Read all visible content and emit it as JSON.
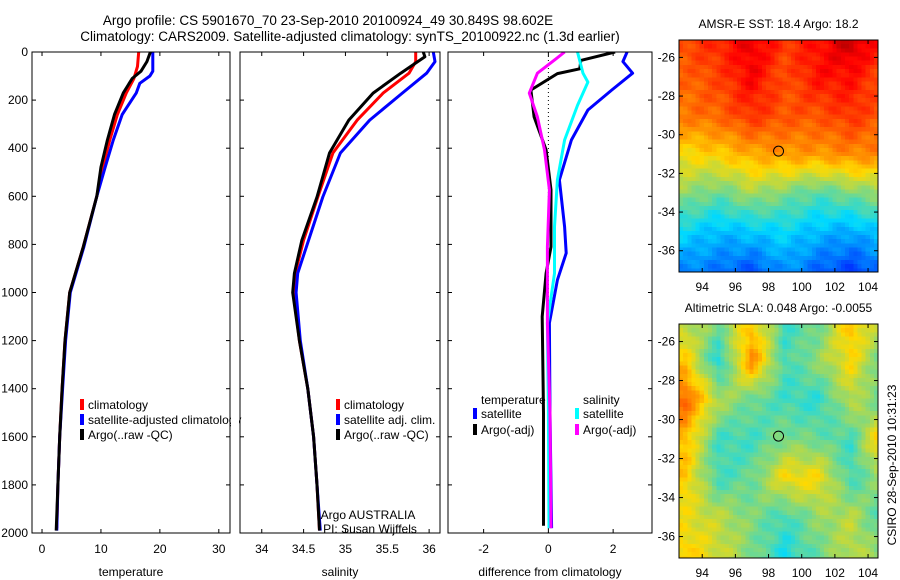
{
  "title": {
    "line1": "Argo profile: CS 5901670_70 23-Sep-2010 20100924_49 30.849S 98.602E",
    "line2": "Climatology: CARS2009. Satellite-adjusted climatology: synTS_20100922.nc (1.3d earlier)"
  },
  "footer": "CSIRO 28-Sep-2010 10:31:23",
  "colors": {
    "climatology": "#ff0000",
    "satellite": "#0000ff",
    "argo": "#000000",
    "sal_satellite": "#00ffff",
    "sal_argo": "#ff00ff"
  },
  "chart_data": [
    {
      "type": "line",
      "xlabel": "temperature",
      "ylabel": "",
      "xlim": [
        -1.7,
        31.9
      ],
      "ylim": [
        0,
        2000
      ],
      "y_reversed": true,
      "xticks": [
        "0",
        "10",
        "20",
        "30"
      ],
      "yticks": [
        "0",
        "200",
        "400",
        "600",
        "800",
        "1000",
        "1200",
        "1400",
        "1600",
        "1800",
        "2000"
      ],
      "legend": [
        "climatology",
        "satellite-adjusted climatology",
        "Argo(..raw -QC)"
      ],
      "series": [
        {
          "name": "climatology",
          "color": "#ff0000",
          "points": [
            [
              16.4,
              0
            ],
            [
              16.2,
              60
            ],
            [
              15.6,
              110
            ],
            [
              14.3,
              170
            ],
            [
              12.8,
              260
            ],
            [
              11.5,
              366
            ],
            [
              10.3,
              480
            ],
            [
              9.3,
              600
            ],
            [
              7.0,
              810
            ],
            [
              4.7,
              1000
            ],
            [
              3.9,
              1200
            ],
            [
              3.4,
              1400
            ],
            [
              3.0,
              1600
            ],
            [
              2.7,
              1800
            ],
            [
              2.5,
              1980
            ]
          ]
        },
        {
          "name": "satellite-adjusted climatology",
          "color": "#0000ff",
          "points": [
            [
              18.8,
              0
            ],
            [
              18.8,
              80
            ],
            [
              18.3,
              100
            ],
            [
              16.6,
              130
            ],
            [
              16.0,
              170
            ],
            [
              13.6,
              260
            ],
            [
              12.1,
              366
            ],
            [
              10.7,
              480
            ],
            [
              9.3,
              600
            ],
            [
              7.1,
              810
            ],
            [
              4.8,
              1000
            ],
            [
              4.0,
              1200
            ],
            [
              3.5,
              1400
            ],
            [
              3.0,
              1600
            ],
            [
              2.7,
              1800
            ],
            [
              2.5,
              1990
            ]
          ]
        },
        {
          "name": "Argo(..raw -QC)",
          "color": "#000000",
          "points": [
            [
              18.4,
              0
            ],
            [
              17.8,
              40
            ],
            [
              16.8,
              80
            ],
            [
              15.3,
              110
            ],
            [
              13.8,
              170
            ],
            [
              12.3,
              260
            ],
            [
              11.1,
              366
            ],
            [
              10.0,
              480
            ],
            [
              9.3,
              600
            ],
            [
              7.0,
              810
            ],
            [
              4.7,
              1000
            ],
            [
              3.9,
              1200
            ],
            [
              3.4,
              1400
            ],
            [
              3.0,
              1600
            ],
            [
              2.7,
              1800
            ],
            [
              2.4,
              1990
            ]
          ]
        }
      ]
    },
    {
      "type": "line",
      "xlabel": "salinity",
      "xlim": [
        33.74,
        36.13
      ],
      "ylim": [
        0,
        2000
      ],
      "y_reversed": true,
      "xticks": [
        "34",
        "34.5",
        "35",
        "35.5",
        "36"
      ],
      "legend": [
        "climatology",
        "satellite adj. clim.",
        "Argo(..raw -QC)"
      ],
      "annotation": [
        "Argo AUSTRALIA",
        "PI: Susan Wijffels"
      ],
      "series": [
        {
          "name": "climatology",
          "color": "#ff0000",
          "points": [
            [
              35.84,
              0
            ],
            [
              35.84,
              40
            ],
            [
              35.76,
              88
            ],
            [
              35.45,
              171
            ],
            [
              35.14,
              283
            ],
            [
              34.85,
              420
            ],
            [
              34.67,
              603
            ],
            [
              34.5,
              782
            ],
            [
              34.4,
              920
            ],
            [
              34.38,
              1000
            ],
            [
              34.45,
              1200
            ],
            [
              34.55,
              1400
            ],
            [
              34.62,
              1600
            ],
            [
              34.66,
              1800
            ],
            [
              34.69,
              1990
            ]
          ]
        },
        {
          "name": "satellite adj. clim.",
          "color": "#0000ff",
          "points": [
            [
              36.05,
              0
            ],
            [
              36.07,
              40
            ],
            [
              35.97,
              88
            ],
            [
              35.68,
              171
            ],
            [
              35.29,
              283
            ],
            [
              34.94,
              420
            ],
            [
              34.73,
              603
            ],
            [
              34.56,
              782
            ],
            [
              34.43,
              920
            ],
            [
              34.41,
              1000
            ],
            [
              34.46,
              1200
            ],
            [
              34.55,
              1400
            ],
            [
              34.62,
              1600
            ],
            [
              34.66,
              1800
            ],
            [
              34.7,
              1990
            ]
          ]
        },
        {
          "name": "Argo(..raw -QC)",
          "color": "#000000",
          "points": [
            [
              35.93,
              0
            ],
            [
              35.95,
              20
            ],
            [
              35.66,
              88
            ],
            [
              35.33,
              171
            ],
            [
              35.04,
              283
            ],
            [
              34.81,
              420
            ],
            [
              34.66,
              603
            ],
            [
              34.48,
              782
            ],
            [
              34.39,
              920
            ],
            [
              34.37,
              1000
            ],
            [
              34.45,
              1200
            ],
            [
              34.55,
              1400
            ],
            [
              34.62,
              1600
            ],
            [
              34.66,
              1800
            ],
            [
              34.69,
              1990
            ]
          ]
        }
      ]
    },
    {
      "type": "line",
      "xlabel": "difference from climatology",
      "xlim": [
        -3.1,
        3.2
      ],
      "ylim": [
        0,
        2000
      ],
      "y_reversed": true,
      "xticks": [
        "-2",
        "0",
        "2"
      ],
      "zero_line": 0,
      "legend": {
        "temperature": [
          "temperature",
          "satellite",
          "Argo(-adj)"
        ],
        "salinity": [
          "salinity",
          "satellite",
          "Argo(-adj)"
        ]
      },
      "series": [
        {
          "name": "temperature satellite",
          "color": "#0000ff",
          "points": [
            [
              2.43,
              0
            ],
            [
              2.3,
              40
            ],
            [
              2.6,
              88
            ],
            [
              1.96,
              158
            ],
            [
              1.22,
              241
            ],
            [
              0.71,
              366
            ],
            [
              0.34,
              532
            ],
            [
              0.5,
              727
            ],
            [
              0.55,
              836
            ],
            [
              0.28,
              948
            ],
            [
              0.03,
              1127
            ],
            [
              0.05,
              1500
            ],
            [
              0.1,
              1980
            ]
          ]
        },
        {
          "name": "temperature Argo(-adj)",
          "color": "#000000",
          "points": [
            [
              2.06,
              0
            ],
            [
              1.0,
              35
            ],
            [
              0.97,
              70
            ],
            [
              0.28,
              90
            ],
            [
              -0.54,
              158
            ],
            [
              -0.44,
              270
            ],
            [
              -0.07,
              407
            ],
            [
              0.08,
              573
            ],
            [
              0.08,
              810
            ],
            [
              -0.07,
              920
            ],
            [
              -0.19,
              1100
            ],
            [
              -0.15,
              1500
            ],
            [
              -0.15,
              1970
            ]
          ]
        },
        {
          "name": "salinity satellite",
          "color": "#00ffff",
          "points": [
            [
              0.9,
              0
            ],
            [
              1.07,
              88
            ],
            [
              1.22,
              125
            ],
            [
              0.9,
              222
            ],
            [
              0.5,
              366
            ],
            [
              0.28,
              532
            ],
            [
              0.19,
              727
            ],
            [
              0.19,
              920
            ],
            [
              -0.03,
              1127
            ],
            [
              0.0,
              1500
            ],
            [
              0.02,
              1980
            ]
          ]
        },
        {
          "name": "salinity Argo(-adj)",
          "color": "#ff00ff",
          "points": [
            [
              0.5,
              0
            ],
            [
              0.24,
              28
            ],
            [
              -0.34,
              88
            ],
            [
              -0.59,
              171
            ],
            [
              -0.34,
              270
            ],
            [
              -0.12,
              407
            ],
            [
              0.03,
              573
            ],
            [
              -0.03,
              810
            ],
            [
              -0.03,
              1127
            ],
            [
              0.05,
              1500
            ],
            [
              0.08,
              1980
            ]
          ]
        }
      ]
    },
    {
      "type": "heatmap",
      "title": "AMSR-E SST: 18.4 Argo: 18.2",
      "xlim": [
        92.6,
        104.6
      ],
      "ylim": [
        -25.1,
        -37.1
      ],
      "xticks": [
        "94",
        "96",
        "98",
        "100",
        "102",
        "104"
      ],
      "yticks": [
        "-26",
        "-28",
        "-30",
        "-32",
        "-34",
        "-36"
      ],
      "marker": {
        "lon": 98.602,
        "lat": -30.849
      },
      "grid_lat": [
        -25,
        -27,
        -29,
        -31,
        -33,
        -35,
        -37
      ],
      "grid_lon": [
        93,
        95,
        97,
        99,
        101,
        103,
        104.6
      ],
      "values": [
        [
          0.8,
          0.84,
          0.9,
          0.82,
          0.86,
          0.94,
          0.86
        ],
        [
          0.76,
          0.8,
          0.88,
          0.78,
          0.86,
          0.86,
          0.8
        ],
        [
          0.74,
          0.76,
          0.82,
          0.78,
          0.78,
          0.82,
          0.78
        ],
        [
          0.62,
          0.64,
          0.68,
          0.7,
          0.7,
          0.72,
          0.72
        ],
        [
          0.52,
          0.48,
          0.54,
          0.5,
          0.46,
          0.5,
          0.52
        ],
        [
          0.38,
          0.34,
          0.36,
          0.38,
          0.34,
          0.32,
          0.36
        ],
        [
          0.28,
          0.26,
          0.22,
          0.3,
          0.24,
          0.2,
          0.24
        ]
      ]
    },
    {
      "type": "heatmap",
      "title": "Altimetric SLA: 0.048 Argo: -0.0055",
      "xlim": [
        92.6,
        104.6
      ],
      "ylim": [
        -25.1,
        -37.1
      ],
      "xticks": [
        "94",
        "96",
        "98",
        "100",
        "102",
        "104"
      ],
      "yticks": [
        "-26",
        "-28",
        "-30",
        "-32",
        "-34",
        "-36"
      ],
      "marker": {
        "lon": 98.602,
        "lat": -30.849
      },
      "grid_lat": [
        -25,
        -27,
        -29,
        -31,
        -33,
        -35,
        -37
      ],
      "grid_lon": [
        93,
        95,
        97,
        99,
        101,
        103,
        104.6
      ],
      "values": [
        [
          0.56,
          0.5,
          0.64,
          0.44,
          0.48,
          0.66,
          0.55
        ],
        [
          0.64,
          0.4,
          0.72,
          0.44,
          0.52,
          0.62,
          0.5
        ],
        [
          0.76,
          0.55,
          0.48,
          0.44,
          0.42,
          0.56,
          0.48
        ],
        [
          0.66,
          0.44,
          0.44,
          0.5,
          0.48,
          0.44,
          0.64
        ],
        [
          0.64,
          0.44,
          0.48,
          0.62,
          0.62,
          0.44,
          0.52
        ],
        [
          0.6,
          0.56,
          0.5,
          0.44,
          0.52,
          0.56,
          0.46
        ],
        [
          0.64,
          0.58,
          0.5,
          0.4,
          0.48,
          0.56,
          0.52
        ]
      ]
    }
  ]
}
